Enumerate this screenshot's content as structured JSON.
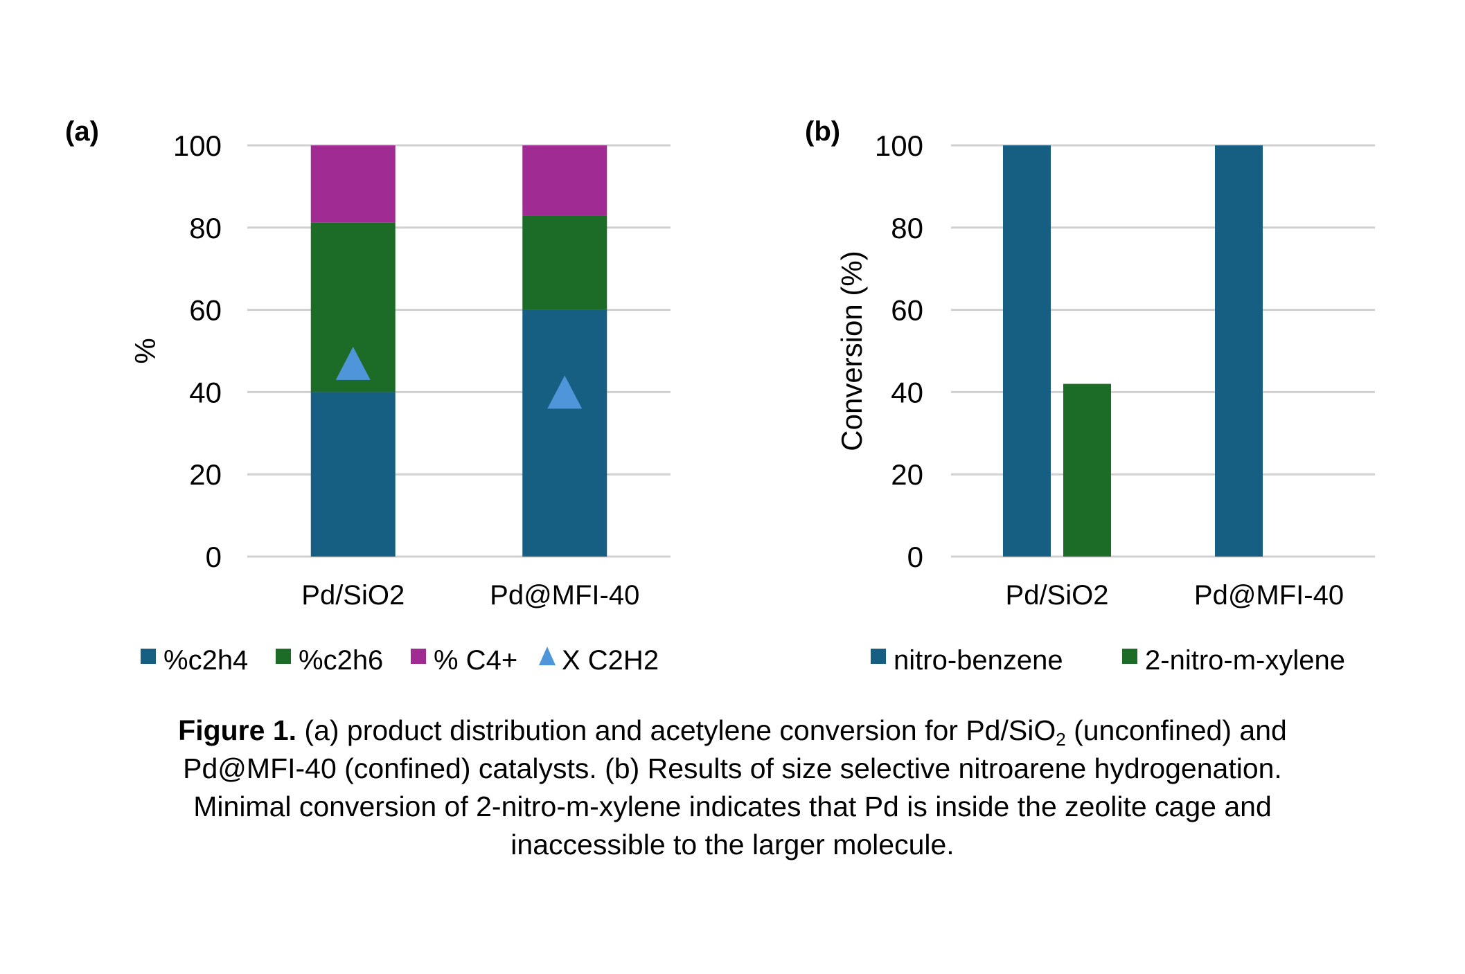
{
  "figure": {
    "caption": {
      "label": "Figure 1.",
      "line1_part1": " (a) product distribution and acetylene conversion for Pd/SiO",
      "line1_sub": "2",
      "line1_part2": " (unconfined) and",
      "line2": "Pd@MFI-40 (confined) catalysts. (b) Results of size selective nitroarene hydrogenation.",
      "line3": "Minimal conversion of 2-nitro-m-xylene indicates that Pd is inside the zeolite cage and",
      "line4": "inaccessible to the larger molecule."
    }
  },
  "colors": {
    "c2h4": "#175F82",
    "c2h6": "#1C6B26",
    "c4plus": "#A02B93",
    "xc2h2": "#4E95D9",
    "grid": "#D0D0D0"
  },
  "chart_data": [
    {
      "panel_label": "(a)",
      "type": "bar",
      "stacked": true,
      "title": "",
      "xlabel": "",
      "ylabel": "%",
      "ylim": [
        0,
        100
      ],
      "yticks": [
        "0",
        "20",
        "40",
        "60",
        "80",
        "100"
      ],
      "grid": true,
      "legend_position": "bottom",
      "categories": [
        "Pd/SiO2",
        "Pd@MFI-40"
      ],
      "series": [
        {
          "name": "%c2h4",
          "kind": "bar",
          "color": "#175F82",
          "values": [
            40,
            60
          ]
        },
        {
          "name": "%c2h6",
          "kind": "bar",
          "color": "#1C6B26",
          "values": [
            41.2,
            22.9
          ]
        },
        {
          "name": "% C4+",
          "kind": "bar",
          "color": "#A02B93",
          "values": [
            18.8,
            17.1
          ]
        },
        {
          "name": "X C2H2",
          "kind": "marker-triangle",
          "color": "#4E95D9",
          "values": [
            47,
            40
          ]
        }
      ]
    },
    {
      "panel_label": "(b)",
      "type": "bar",
      "stacked": false,
      "title": "",
      "xlabel": "",
      "ylabel": "Conversion (%)",
      "ylim": [
        0,
        100
      ],
      "yticks": [
        "0",
        "20",
        "40",
        "60",
        "80",
        "100"
      ],
      "grid": true,
      "legend_position": "bottom",
      "categories": [
        "Pd/SiO2",
        "Pd@MFI-40"
      ],
      "series": [
        {
          "name": "nitro-benzene",
          "color": "#175F82",
          "values": [
            100,
            100
          ]
        },
        {
          "name": "2-nitro-m-xylene",
          "color": "#1C6B26",
          "values": [
            42,
            0
          ]
        }
      ]
    }
  ]
}
